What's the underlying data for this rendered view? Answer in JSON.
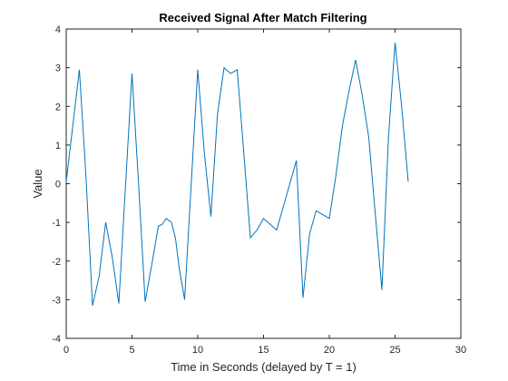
{
  "chart_data": {
    "type": "line",
    "title": "Received Signal After Match Filtering",
    "xlabel": "Time in Seconds (delayed by T = 1)",
    "ylabel": "Value",
    "xlim": [
      0,
      30
    ],
    "ylim": [
      -4,
      4
    ],
    "xticks": [
      0,
      5,
      10,
      15,
      20,
      25,
      30
    ],
    "yticks": [
      -4,
      -3,
      -2,
      -1,
      0,
      1,
      2,
      3,
      4
    ],
    "grid": false,
    "line_color": "#0072bd",
    "series": [
      {
        "x": [
          0,
          0.5,
          1.0,
          1.5,
          2.0,
          2.5,
          3.0,
          3.5,
          4.0,
          4.5,
          5.0,
          5.5,
          6.0,
          6.5,
          7.0,
          7.3,
          7.6,
          8.0,
          8.3,
          8.6,
          9.0,
          10.0,
          10.5,
          11.0,
          11.5,
          12.0,
          12.5,
          13.0,
          13.5,
          14.0,
          14.5,
          15.0,
          15.5,
          16.0,
          16.5,
          17.0,
          17.5,
          18.0,
          18.5,
          19.0,
          19.5,
          20.0,
          20.5,
          21.0,
          21.5,
          22.0,
          22.5,
          23.0,
          23.5,
          24.0,
          24.5,
          25.0,
          25.5,
          26.0
        ],
        "y": [
          0.05,
          1.5,
          2.95,
          0.2,
          -3.15,
          -2.4,
          -1.0,
          -1.9,
          -3.1,
          -0.1,
          2.85,
          0.0,
          -3.05,
          -2.1,
          -1.1,
          -1.05,
          -0.9,
          -1.0,
          -1.4,
          -2.2,
          -3.0,
          2.95,
          0.8,
          -0.85,
          1.8,
          3.0,
          2.85,
          2.95,
          0.8,
          -1.4,
          -1.2,
          -0.9,
          -1.05,
          -1.2,
          -0.6,
          0.0,
          0.6,
          -2.95,
          -1.3,
          -0.7,
          -0.8,
          -0.9,
          0.2,
          1.5,
          2.4,
          3.2,
          2.3,
          1.2,
          -0.8,
          -2.75,
          1.2,
          3.65,
          2.0,
          0.05
        ]
      }
    ]
  }
}
